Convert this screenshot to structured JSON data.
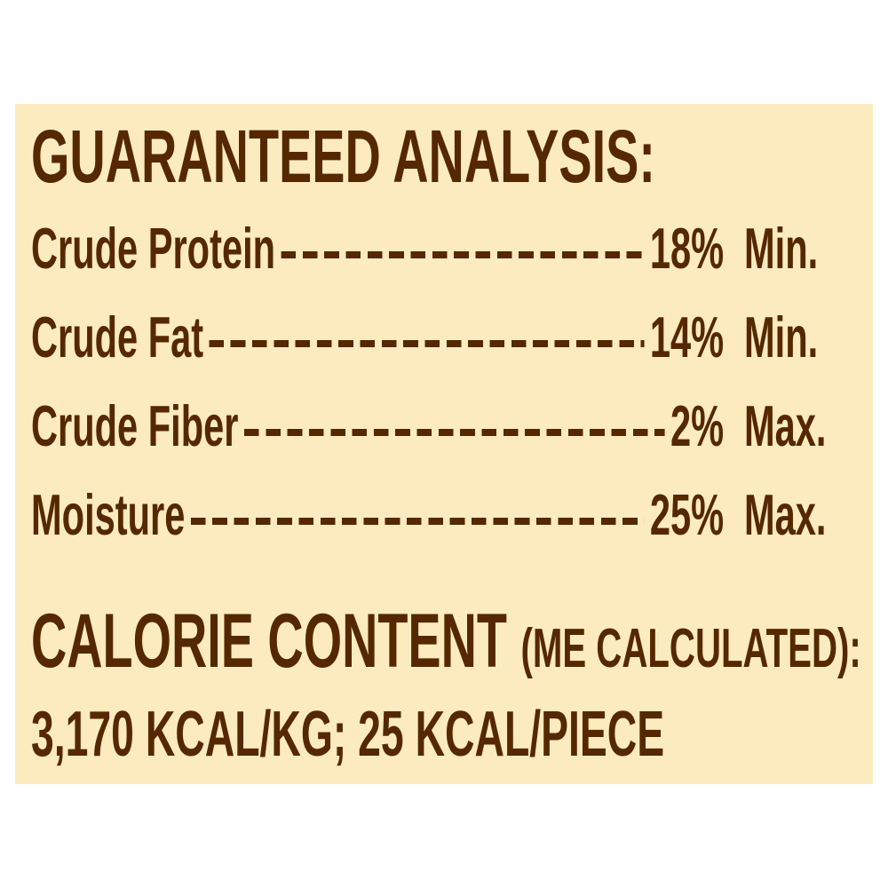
{
  "colors": {
    "background": "#FDEBC0",
    "text": "#552800"
  },
  "heading": "GUARANTEED ANALYSIS:",
  "rows": [
    {
      "label": "Crude Protein",
      "value": "18%",
      "unit": "Min."
    },
    {
      "label": "Crude Fat",
      "value": "14%",
      "unit": "Min."
    },
    {
      "label": "Crude Fiber",
      "value": "2%",
      "unit": "Max."
    },
    {
      "label": "Moisture",
      "value": "25%",
      "unit": "Max."
    }
  ],
  "calorie": {
    "title": "CALORIE CONTENT",
    "qualifier": "(ME CALCULATED):",
    "value": "3,170 KCAL/KG; 25 KCAL/PIECE"
  }
}
